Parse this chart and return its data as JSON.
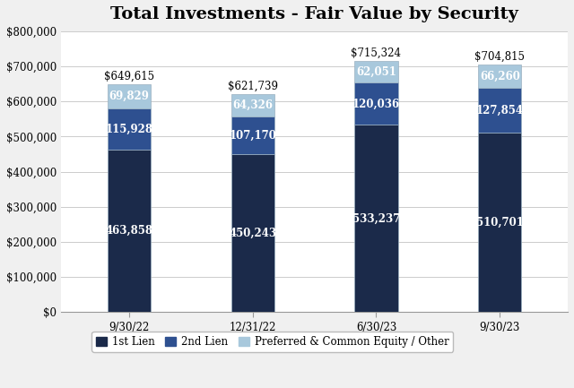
{
  "title": "Total Investments - Fair Value by Security",
  "categories": [
    "9/30/22",
    "12/31/22",
    "6/30/23",
    "9/30/23"
  ],
  "first_lien": [
    463858,
    450243,
    533237,
    510701
  ],
  "second_lien": [
    115928,
    107170,
    120036,
    127854
  ],
  "preferred": [
    69829,
    64326,
    62051,
    66260
  ],
  "totals": [
    "$649,615",
    "$621,739",
    "$715,324",
    "$704,815"
  ],
  "color_first_lien": "#1b2a4a",
  "color_second_lien": "#2e5090",
  "color_preferred": "#a8c8dc",
  "bar_width": 0.35,
  "ylim": [
    0,
    800000
  ],
  "yticks": [
    0,
    100000,
    200000,
    300000,
    400000,
    500000,
    600000,
    700000,
    800000
  ],
  "ytick_labels": [
    "$0",
    "$100,000",
    "$200,000",
    "$300,000",
    "$400,000",
    "$500,000",
    "$600,000",
    "$700,000",
    "$800,000"
  ],
  "legend_labels": [
    "1st Lien",
    "2nd Lien",
    "Preferred & Common Equity / Other"
  ],
  "bg_color": "#f0f0f0",
  "plot_bg_color": "#ffffff",
  "outer_bg_color": "#e8e8e8",
  "grid_color": "#cccccc",
  "label_fontsize": 8.5,
  "title_fontsize": 14,
  "tick_fontsize": 8.5,
  "legend_fontsize": 8.5
}
